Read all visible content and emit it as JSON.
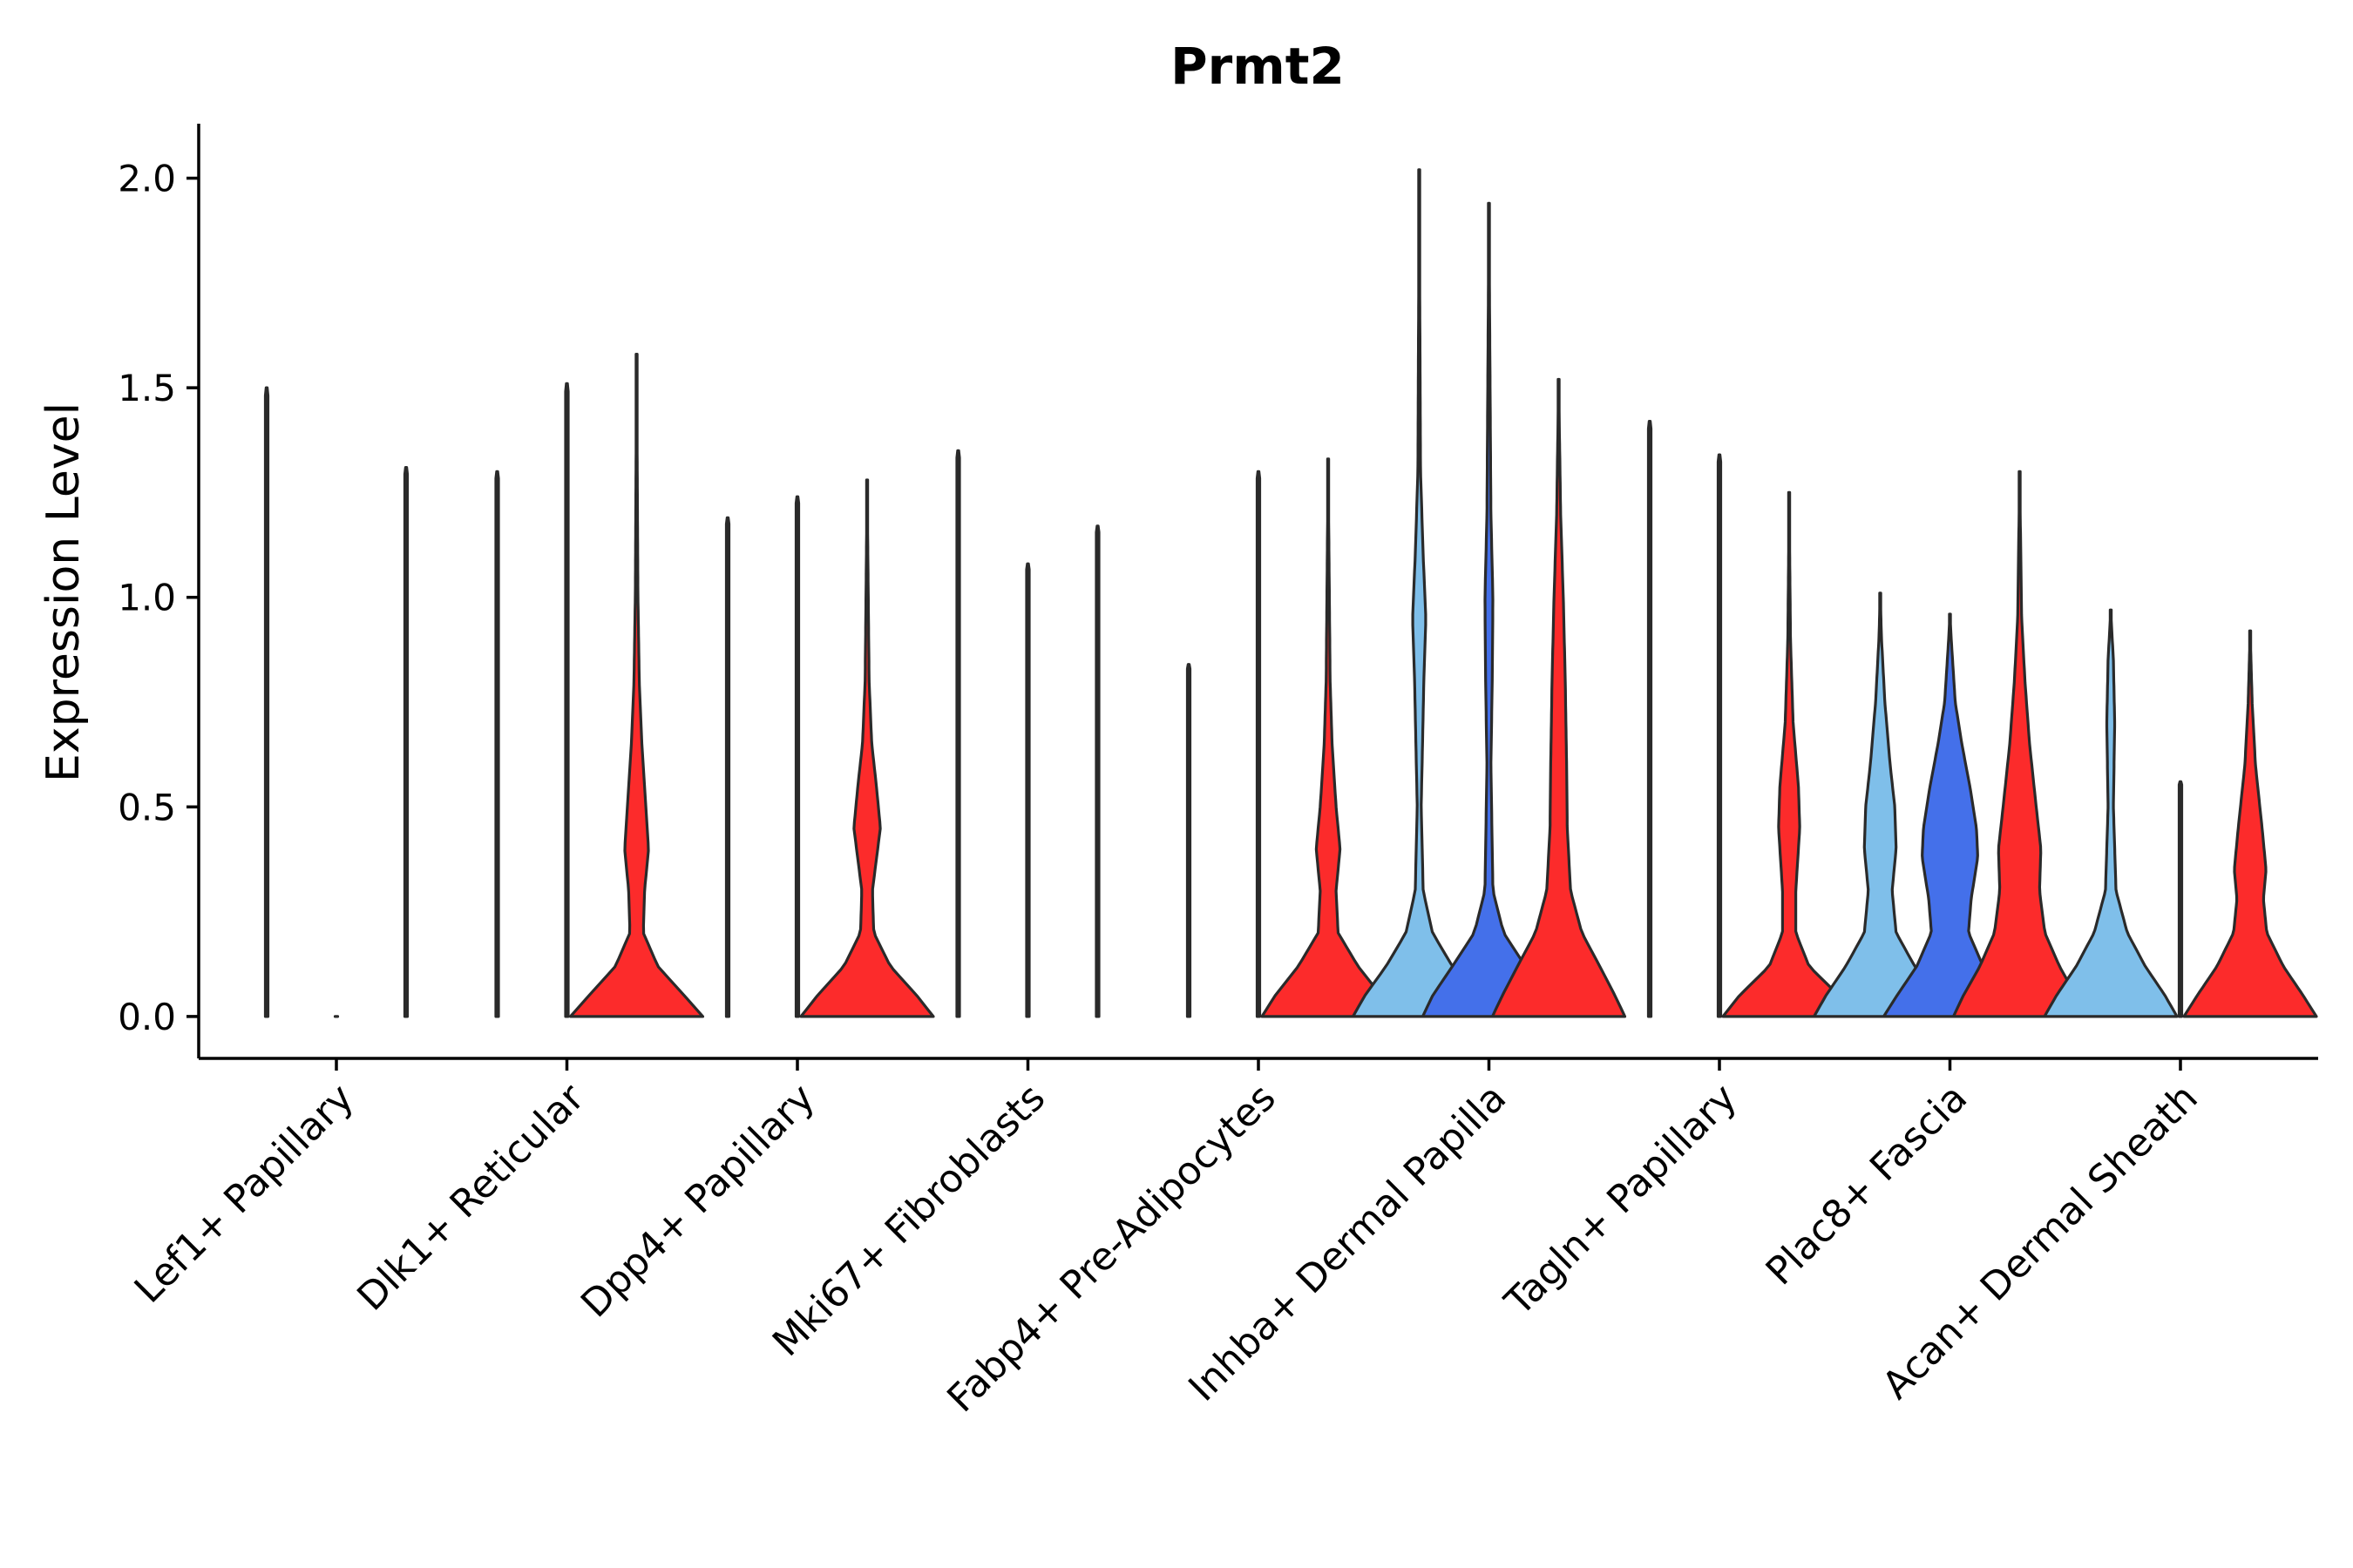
{
  "chart_data": {
    "type": "violin",
    "title": "Prmt2",
    "xlabel": "",
    "ylabel": "Expression Level",
    "ylim": [
      -0.1,
      2.13
    ],
    "yticks": [
      0.0,
      0.5,
      1.0,
      1.5,
      2.0
    ],
    "ytick_labels": [
      "0.0",
      "0.5",
      "1.0",
      "1.5",
      "2.0"
    ],
    "grid": false,
    "groups": [
      "light-blue",
      "royal-blue",
      "red"
    ],
    "colors": {
      "light-blue": "#7fbfea",
      "royal-blue": "#4470ea",
      "red": "#fc2b2b"
    },
    "categories": [
      "Lef1+ Papillary",
      "Dlk1+ Reticular",
      "Dpp4+ Papillary",
      "Mki67+ Fibroblasts",
      "Fabp4+ Pre-Adipocytes",
      "Inhba+ Dermal Papilla",
      "Tagln+ Papillary",
      "Plac8+ Fascia",
      "Acan+ Dermal Sheath"
    ],
    "violins": [
      {
        "category": "Lef1+ Papillary",
        "group": "light-blue",
        "max": 1.5,
        "profile": [
          [
            0.0,
            0.02
          ]
        ]
      },
      {
        "category": "Lef1+ Papillary",
        "group": "royal-blue",
        "max": 0.0,
        "profile": [
          [
            0.0,
            0.02
          ]
        ]
      },
      {
        "category": "Lef1+ Papillary",
        "group": "red",
        "max": 1.31,
        "profile": [
          [
            0.0,
            0.02
          ]
        ]
      },
      {
        "category": "Dlk1+ Reticular",
        "group": "light-blue",
        "max": 1.3,
        "profile": [
          [
            0.0,
            0.02
          ]
        ]
      },
      {
        "category": "Dlk1+ Reticular",
        "group": "royal-blue",
        "max": 1.51,
        "profile": [
          [
            0.0,
            0.02
          ]
        ]
      },
      {
        "category": "Dlk1+ Reticular",
        "group": "red",
        "max": 1.58,
        "profile": [
          [
            0.0,
            1.0
          ],
          [
            0.05,
            0.72
          ],
          [
            0.12,
            0.32
          ],
          [
            0.2,
            0.1
          ],
          [
            0.3,
            0.12
          ],
          [
            0.4,
            0.18
          ],
          [
            0.5,
            0.14
          ],
          [
            0.65,
            0.08
          ],
          [
            0.8,
            0.04
          ],
          [
            1.0,
            0.02
          ],
          [
            1.58,
            0.0
          ]
        ]
      },
      {
        "category": "Dpp4+ Papillary",
        "group": "light-blue",
        "max": 1.19,
        "profile": [
          [
            0.0,
            0.02
          ]
        ]
      },
      {
        "category": "Dpp4+ Papillary",
        "group": "royal-blue",
        "max": 1.24,
        "profile": [
          [
            0.0,
            0.02
          ]
        ]
      },
      {
        "category": "Dpp4+ Papillary",
        "group": "red",
        "max": 1.28,
        "profile": [
          [
            0.0,
            1.0
          ],
          [
            0.05,
            0.75
          ],
          [
            0.12,
            0.35
          ],
          [
            0.2,
            0.1
          ],
          [
            0.3,
            0.08
          ],
          [
            0.4,
            0.16
          ],
          [
            0.45,
            0.2
          ],
          [
            0.55,
            0.14
          ],
          [
            0.65,
            0.07
          ],
          [
            0.8,
            0.03
          ],
          [
            1.28,
            0.0
          ]
        ]
      },
      {
        "category": "Mki67+ Fibroblasts",
        "group": "light-blue",
        "max": 1.35,
        "profile": [
          [
            0.0,
            0.02
          ]
        ]
      },
      {
        "category": "Mki67+ Fibroblasts",
        "group": "royal-blue",
        "max": 1.08,
        "profile": [
          [
            0.0,
            0.02
          ]
        ]
      },
      {
        "category": "Mki67+ Fibroblasts",
        "group": "red",
        "max": 1.17,
        "profile": [
          [
            0.0,
            0.02
          ]
        ]
      },
      {
        "category": "Fabp4+ Pre-Adipocytes",
        "group": "light-blue",
        "max": 0.84,
        "profile": [
          [
            0.0,
            0.02
          ]
        ]
      },
      {
        "category": "Fabp4+ Pre-Adipocytes",
        "group": "royal-blue",
        "max": 1.3,
        "profile": [
          [
            0.0,
            0.02
          ]
        ]
      },
      {
        "category": "Fabp4+ Pre-Adipocytes",
        "group": "red",
        "max": 1.33,
        "profile": [
          [
            0.0,
            1.0
          ],
          [
            0.05,
            0.8
          ],
          [
            0.12,
            0.45
          ],
          [
            0.2,
            0.15
          ],
          [
            0.3,
            0.12
          ],
          [
            0.4,
            0.18
          ],
          [
            0.5,
            0.12
          ],
          [
            0.65,
            0.06
          ],
          [
            0.8,
            0.03
          ],
          [
            1.33,
            0.0
          ]
        ]
      },
      {
        "category": "Inhba+ Dermal Papilla",
        "group": "light-blue",
        "max": 2.02,
        "profile": [
          [
            0.0,
            1.0
          ],
          [
            0.05,
            0.82
          ],
          [
            0.12,
            0.5
          ],
          [
            0.2,
            0.2
          ],
          [
            0.3,
            0.06
          ],
          [
            0.5,
            0.03
          ],
          [
            0.8,
            0.07
          ],
          [
            0.95,
            0.1
          ],
          [
            1.1,
            0.06
          ],
          [
            1.3,
            0.02
          ],
          [
            2.02,
            0.0
          ]
        ]
      },
      {
        "category": "Inhba+ Dermal Papilla",
        "group": "royal-blue",
        "max": 1.94,
        "profile": [
          [
            0.0,
            1.0
          ],
          [
            0.05,
            0.85
          ],
          [
            0.12,
            0.55
          ],
          [
            0.2,
            0.22
          ],
          [
            0.3,
            0.06
          ],
          [
            0.6,
            0.03
          ],
          [
            0.8,
            0.05
          ],
          [
            1.0,
            0.06
          ],
          [
            1.2,
            0.03
          ],
          [
            1.94,
            0.0
          ]
        ]
      },
      {
        "category": "Inhba+ Dermal Papilla",
        "group": "red",
        "max": 1.52,
        "profile": [
          [
            0.0,
            1.0
          ],
          [
            0.05,
            0.85
          ],
          [
            0.12,
            0.62
          ],
          [
            0.2,
            0.35
          ],
          [
            0.3,
            0.18
          ],
          [
            0.45,
            0.13
          ],
          [
            0.6,
            0.12
          ],
          [
            0.8,
            0.1
          ],
          [
            1.0,
            0.07
          ],
          [
            1.2,
            0.03
          ],
          [
            1.52,
            0.0
          ]
        ]
      },
      {
        "category": "Tagln+ Papillary",
        "group": "light-blue",
        "max": 1.42,
        "profile": [
          [
            0.0,
            0.02
          ]
        ]
      },
      {
        "category": "Tagln+ Papillary",
        "group": "royal-blue",
        "max": 1.34,
        "profile": [
          [
            0.0,
            0.02
          ]
        ]
      },
      {
        "category": "Tagln+ Papillary",
        "group": "red",
        "max": 1.25,
        "profile": [
          [
            0.0,
            1.0
          ],
          [
            0.05,
            0.75
          ],
          [
            0.12,
            0.3
          ],
          [
            0.2,
            0.1
          ],
          [
            0.3,
            0.1
          ],
          [
            0.45,
            0.16
          ],
          [
            0.55,
            0.14
          ],
          [
            0.7,
            0.06
          ],
          [
            0.9,
            0.02
          ],
          [
            1.25,
            0.0
          ]
        ]
      },
      {
        "category": "Plac8+ Fascia",
        "group": "light-blue",
        "max": 1.01,
        "profile": [
          [
            0.0,
            1.0
          ],
          [
            0.05,
            0.82
          ],
          [
            0.12,
            0.52
          ],
          [
            0.2,
            0.24
          ],
          [
            0.3,
            0.18
          ],
          [
            0.4,
            0.24
          ],
          [
            0.5,
            0.22
          ],
          [
            0.6,
            0.15
          ],
          [
            0.75,
            0.07
          ],
          [
            0.9,
            0.02
          ],
          [
            1.01,
            0.0
          ]
        ]
      },
      {
        "category": "Plac8+ Fascia",
        "group": "royal-blue",
        "max": 0.96,
        "profile": [
          [
            0.0,
            1.0
          ],
          [
            0.05,
            0.8
          ],
          [
            0.12,
            0.5
          ],
          [
            0.2,
            0.28
          ],
          [
            0.28,
            0.32
          ],
          [
            0.38,
            0.42
          ],
          [
            0.45,
            0.4
          ],
          [
            0.55,
            0.3
          ],
          [
            0.65,
            0.18
          ],
          [
            0.75,
            0.08
          ],
          [
            0.9,
            0.02
          ],
          [
            0.96,
            0.0
          ]
        ]
      },
      {
        "category": "Plac8+ Fascia",
        "group": "red",
        "max": 1.3,
        "profile": [
          [
            0.0,
            1.0
          ],
          [
            0.05,
            0.85
          ],
          [
            0.12,
            0.6
          ],
          [
            0.2,
            0.38
          ],
          [
            0.3,
            0.3
          ],
          [
            0.4,
            0.32
          ],
          [
            0.5,
            0.25
          ],
          [
            0.65,
            0.15
          ],
          [
            0.8,
            0.08
          ],
          [
            0.95,
            0.03
          ],
          [
            1.3,
            0.0
          ]
        ]
      },
      {
        "category": "Acan+ Dermal Sheath",
        "group": "light-blue",
        "max": 0.97,
        "profile": [
          [
            0.0,
            1.0
          ],
          [
            0.05,
            0.82
          ],
          [
            0.12,
            0.52
          ],
          [
            0.2,
            0.25
          ],
          [
            0.3,
            0.08
          ],
          [
            0.5,
            0.04
          ],
          [
            0.7,
            0.06
          ],
          [
            0.85,
            0.04
          ],
          [
            0.97,
            0.0
          ]
        ]
      },
      {
        "category": "Acan+ Dermal Sheath",
        "group": "royal-blue",
        "max": 0.56,
        "profile": [
          [
            0.0,
            0.02
          ]
        ]
      },
      {
        "category": "Acan+ Dermal Sheath",
        "group": "red",
        "max": 0.92,
        "profile": [
          [
            0.0,
            1.0
          ],
          [
            0.05,
            0.8
          ],
          [
            0.12,
            0.5
          ],
          [
            0.2,
            0.25
          ],
          [
            0.28,
            0.2
          ],
          [
            0.35,
            0.24
          ],
          [
            0.45,
            0.18
          ],
          [
            0.6,
            0.08
          ],
          [
            0.75,
            0.03
          ],
          [
            0.92,
            0.0
          ]
        ]
      }
    ]
  }
}
